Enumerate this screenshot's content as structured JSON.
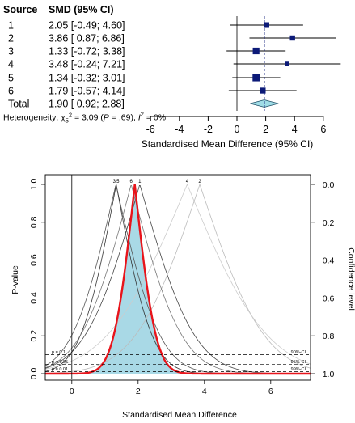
{
  "chart_data": [
    {
      "type": "forest",
      "header": {
        "source": "Source",
        "effect": "SMD (95% CI)"
      },
      "rows": [
        {
          "label": "1",
          "text": "2.05 [-0.49; 4.60]",
          "est": 2.05,
          "lo": -0.49,
          "hi": 4.6,
          "weight": 1.0
        },
        {
          "label": "2",
          "text": "3.86 [ 0.87; 6.86]",
          "est": 3.86,
          "lo": 0.87,
          "hi": 6.86,
          "weight": 0.8
        },
        {
          "label": "3",
          "text": "1.33 [-0.72; 3.38]",
          "est": 1.33,
          "lo": -0.72,
          "hi": 3.38,
          "weight": 1.4
        },
        {
          "label": "4",
          "text": "3.48 [-0.24; 7.21]",
          "est": 3.48,
          "lo": -0.24,
          "hi": 7.21,
          "weight": 0.5
        },
        {
          "label": "5",
          "text": "1.34 [-0.32; 3.01]",
          "est": 1.34,
          "lo": -0.32,
          "hi": 3.01,
          "weight": 1.7
        },
        {
          "label": "6",
          "text": "1.79 [-0.57; 4.14]",
          "est": 1.79,
          "lo": -0.57,
          "hi": 4.14,
          "weight": 1.1
        }
      ],
      "total": {
        "label": "Total",
        "text": "1.90 [ 0.92; 2.88]",
        "est": 1.9,
        "lo": 0.92,
        "hi": 2.88
      },
      "heterogeneity": {
        "prefix": "Heterogeneity: ",
        "chi": "χ",
        "df": "5",
        "sup": "2",
        "text": " = 3.09 (",
        "p_label": "P",
        "p_text": " = .69), ",
        "i2_label": "I",
        "i2_sup": "2",
        "i2_text": " = 0%"
      },
      "xlim": [
        -6,
        6
      ],
      "ticks": [
        "-6",
        "-4",
        "-2",
        "0",
        "2",
        "4",
        "6"
      ],
      "tick_values": [
        -6,
        -4,
        -2,
        0,
        2,
        4,
        6
      ],
      "xlabel": "Standardised Mean Difference (95% CI)"
    },
    {
      "type": "p-value-function",
      "xlim": [
        -0.8,
        7.2
      ],
      "x_ticks": [
        0,
        2,
        4,
        6
      ],
      "x_tick_labels": [
        "0",
        "2",
        "4",
        "6"
      ],
      "ylim": [
        0,
        1
      ],
      "y_ticks": [
        0,
        0.2,
        0.4,
        0.6,
        0.8,
        1.0
      ],
      "y_tick_labels": [
        "0.0",
        "0.2",
        "0.4",
        "0.6",
        "0.8",
        "1.0"
      ],
      "right_ticks": [
        0.0,
        0.2,
        0.4,
        0.6,
        0.8,
        1.0
      ],
      "right_tick_labels": [
        "0.0",
        "0.2",
        "0.4",
        "0.6",
        "0.8",
        "1.0"
      ],
      "xlabel": "Standardised Mean Difference",
      "ylabel": "P-value",
      "ylabel_right": "Confidence level",
      "study_labels": [
        {
          "text": "3",
          "x": 1.33
        },
        {
          "text": "5",
          "x": 1.34
        },
        {
          "text": "6",
          "x": 1.79
        },
        {
          "text": "1",
          "x": 2.05
        },
        {
          "text": "4",
          "x": 3.48
        },
        {
          "text": "2",
          "x": 3.86
        }
      ],
      "reference_lines": [
        {
          "p": 0.1,
          "left": "p = 0.1",
          "right": "90%-CI"
        },
        {
          "p": 0.05,
          "left": "p = 0.05",
          "right": "95%-CI"
        },
        {
          "p": 0.01,
          "left": "p = 0.01",
          "right": "99%-CI"
        }
      ],
      "pooled": {
        "est": 1.9,
        "lo95": 0.92,
        "hi95": 2.88,
        "line_color": "#e8141b",
        "fill_color": "#a9d9e6"
      },
      "study_line_colors": [
        "#444444",
        "#bbbbbb",
        "#555555",
        "#cccccc",
        "#333333",
        "#777777"
      ]
    }
  ]
}
